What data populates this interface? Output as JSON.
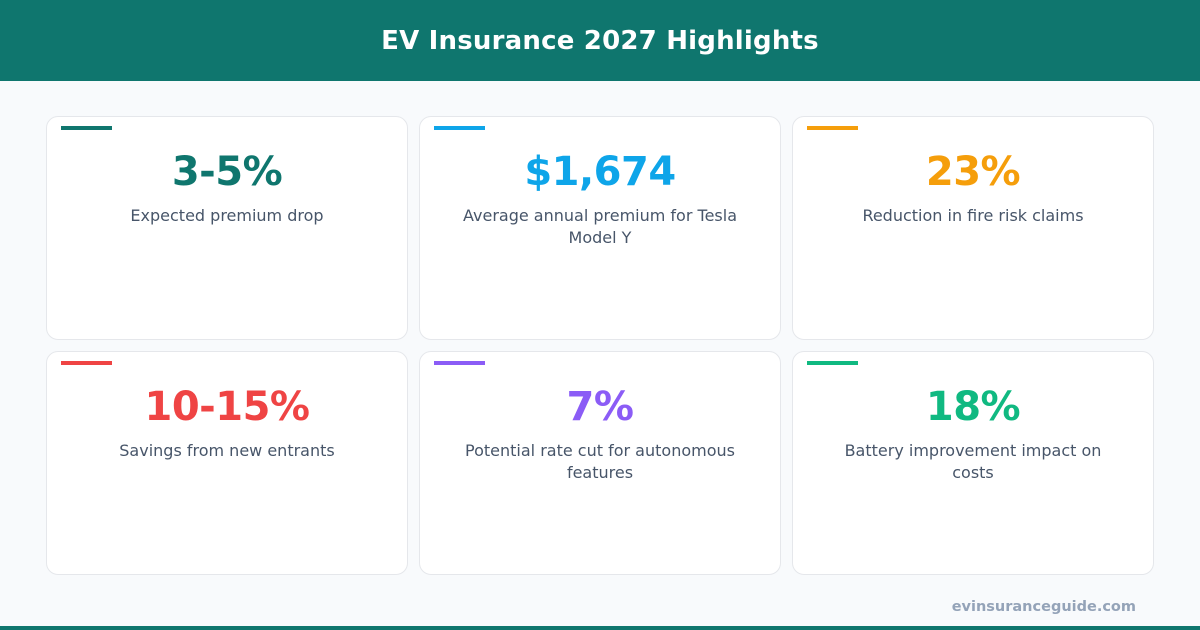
{
  "header": {
    "title": "EV Insurance 2027 Highlights",
    "color": "#0f766e"
  },
  "cards": [
    {
      "value": "3-5%",
      "label": "Expected premium drop",
      "color": "#0f766e"
    },
    {
      "value": "$1,674",
      "label": "Average annual premium for Tesla Model Y",
      "color": "#0ea5e9"
    },
    {
      "value": "23%",
      "label": "Reduction in fire risk claims",
      "color": "#f59e0b"
    },
    {
      "value": "10-15%",
      "label": "Savings from new entrants",
      "color": "#ef4444"
    },
    {
      "value": "7%",
      "label": "Potential rate cut for autonomous features",
      "color": "#8b5cf6"
    },
    {
      "value": "18%",
      "label": "Battery improvement impact on costs",
      "color": "#10b981"
    }
  ],
  "footer": {
    "domain": "evinsuranceguide.com"
  }
}
